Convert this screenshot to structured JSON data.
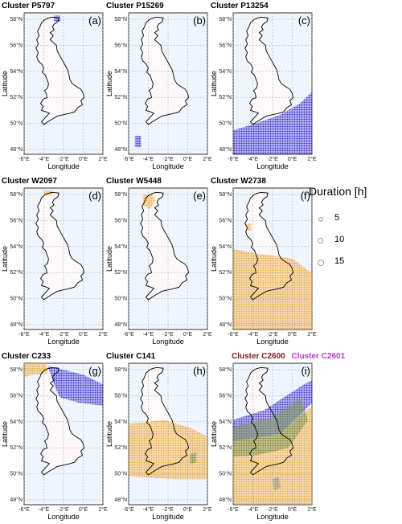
{
  "map": {
    "lat_ticks": [
      "58°N",
      "56°N",
      "54°N",
      "52°N",
      "50°N",
      "48°N"
    ],
    "lon_ticks": [
      "-6°E",
      "-4°E",
      "-2°E",
      "0°E",
      "2°E"
    ],
    "xlabel": "Longitude",
    "ylabel": "Latitude",
    "colors": {
      "sea": "#eef5fd",
      "land": "#fdf8fa",
      "blue": "#3a2bd0",
      "orange": "#f0a830",
      "green": "#6e8a3e",
      "grey": "#8a8a8a"
    }
  },
  "panels": [
    {
      "title": "Cluster P5797",
      "letter": "(a)",
      "fill": "blue"
    },
    {
      "title": "Cluster P15269",
      "letter": "(b)",
      "fill": "blue"
    },
    {
      "title": "Cluster P13254",
      "letter": "(c)",
      "fill": "blue"
    },
    {
      "title": "Cluster W2097",
      "letter": "(d)",
      "fill": "orange"
    },
    {
      "title": "Cluster W5448",
      "letter": "(e)",
      "fill": "orange"
    },
    {
      "title": "Cluster W2738",
      "letter": "(f)",
      "fill": "orange"
    },
    {
      "title": "Cluster C233",
      "letter": "(g)",
      "fill": "mixed"
    },
    {
      "title": "Cluster C141",
      "letter": "(h)",
      "fill": "orange"
    },
    {
      "title": "",
      "title_a": "Cluster C2600",
      "title_b": "Cluster C2601",
      "letter": "(i)",
      "fill": "mixed"
    }
  ],
  "legend": {
    "title": "Duration [h]",
    "items": [
      {
        "label": "5"
      },
      {
        "label": "10"
      },
      {
        "label": "15"
      }
    ]
  }
}
